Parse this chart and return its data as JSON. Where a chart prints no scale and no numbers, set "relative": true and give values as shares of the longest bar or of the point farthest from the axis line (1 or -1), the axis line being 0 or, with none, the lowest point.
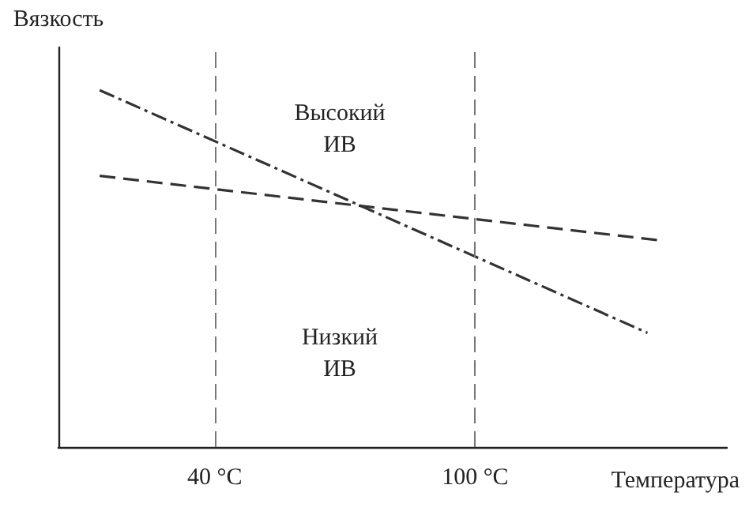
{
  "chart_data": {
    "type": "line",
    "ylabel": "Вязкость",
    "xlabel": "Температура",
    "relative": true,
    "xlim": [
      4,
      158
    ],
    "xticks": [
      {
        "value": 40,
        "label": "40 °C"
      },
      {
        "value": 100,
        "label": "100 °C"
      }
    ],
    "grid": false,
    "marker": "none",
    "series": [
      {
        "color": "#333333",
        "x": [
          13.5,
          139.7
        ],
        "values": [
          1,
          0.32
        ],
        "line_style": "dashdot"
      },
      {
        "color": "#333333",
        "x": [
          13.5,
          142
        ],
        "values": [
          0.76,
          0.58
        ],
        "line_style": "dashed"
      }
    ],
    "ref_lines": [
      {
        "axis": "x",
        "value": 40,
        "color": "#777777",
        "line_style": "dashed"
      },
      {
        "axis": "x",
        "value": 100,
        "color": "#777777",
        "line_style": "dashed"
      }
    ],
    "annotations": [
      "Высокий\nИВ",
      "Низкий\nИВ"
    ]
  }
}
